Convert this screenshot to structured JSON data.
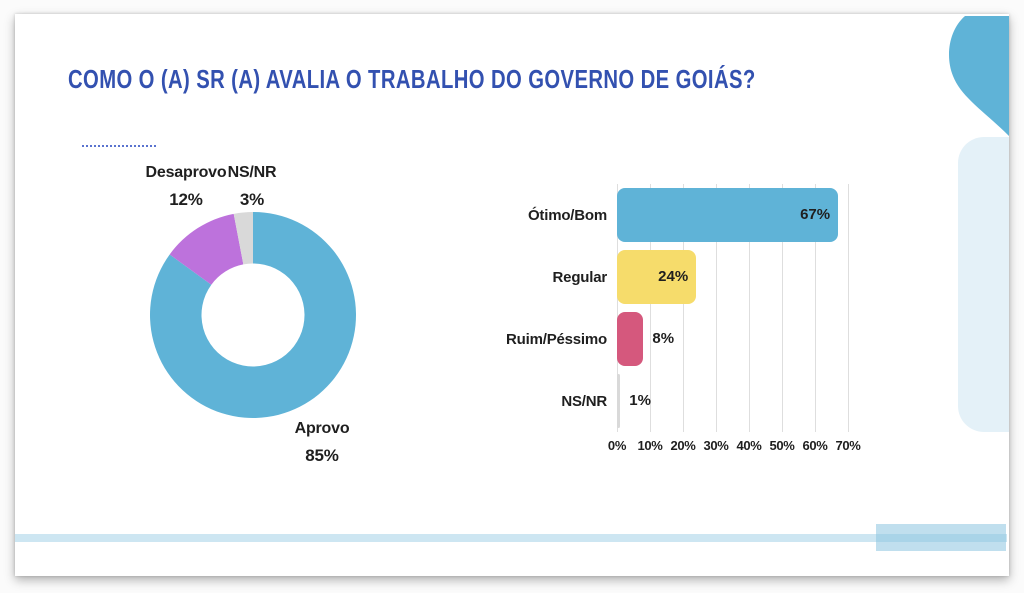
{
  "slide": {
    "title": "COMO O (A) SR (A) AVALIA O TRABALHO DO GOVERNO DE GOIÁS?"
  },
  "theme": {
    "title_color": "#3351B0",
    "text_color": "#1F1F1F",
    "gridline_color": "#DEDEDE",
    "accent_blue": "#5FB3D7",
    "accent_light_blue": "#E4F1F8"
  },
  "chart_data": [
    {
      "type": "pie",
      "subtype": "donut",
      "unit": "%",
      "direction": "clockwise",
      "start_angle_deg": 0,
      "inner_radius_ratio": 0.5,
      "slices": [
        {
          "label": "Aprovo",
          "value": 85,
          "display": "85%",
          "color": "#5FB3D7"
        },
        {
          "label": "Desaprovo",
          "value": 12,
          "display": "12%",
          "color": "#BD72DC"
        },
        {
          "label": "NS/NR",
          "value": 3,
          "display": "3%",
          "color": "#D9D9D9"
        }
      ]
    },
    {
      "type": "bar",
      "orientation": "horizontal",
      "categories": [
        "Ótimo/Bom",
        "Regular",
        "Ruim/Péssimo",
        "NS/NR"
      ],
      "values": [
        67,
        24,
        8,
        1
      ],
      "displays": [
        "67%",
        "24%",
        "8%",
        "1%"
      ],
      "bar_colors": [
        "#5FB3D7",
        "#F6DC6B",
        "#D5587D",
        "#D9D9D9"
      ],
      "x_axis": {
        "min": 0,
        "max": 70,
        "tick_step": 10,
        "tick_labels": [
          "0%",
          "10%",
          "20%",
          "30%",
          "40%",
          "50%",
          "60%",
          "70%"
        ]
      },
      "grid": true,
      "legend": false
    }
  ]
}
